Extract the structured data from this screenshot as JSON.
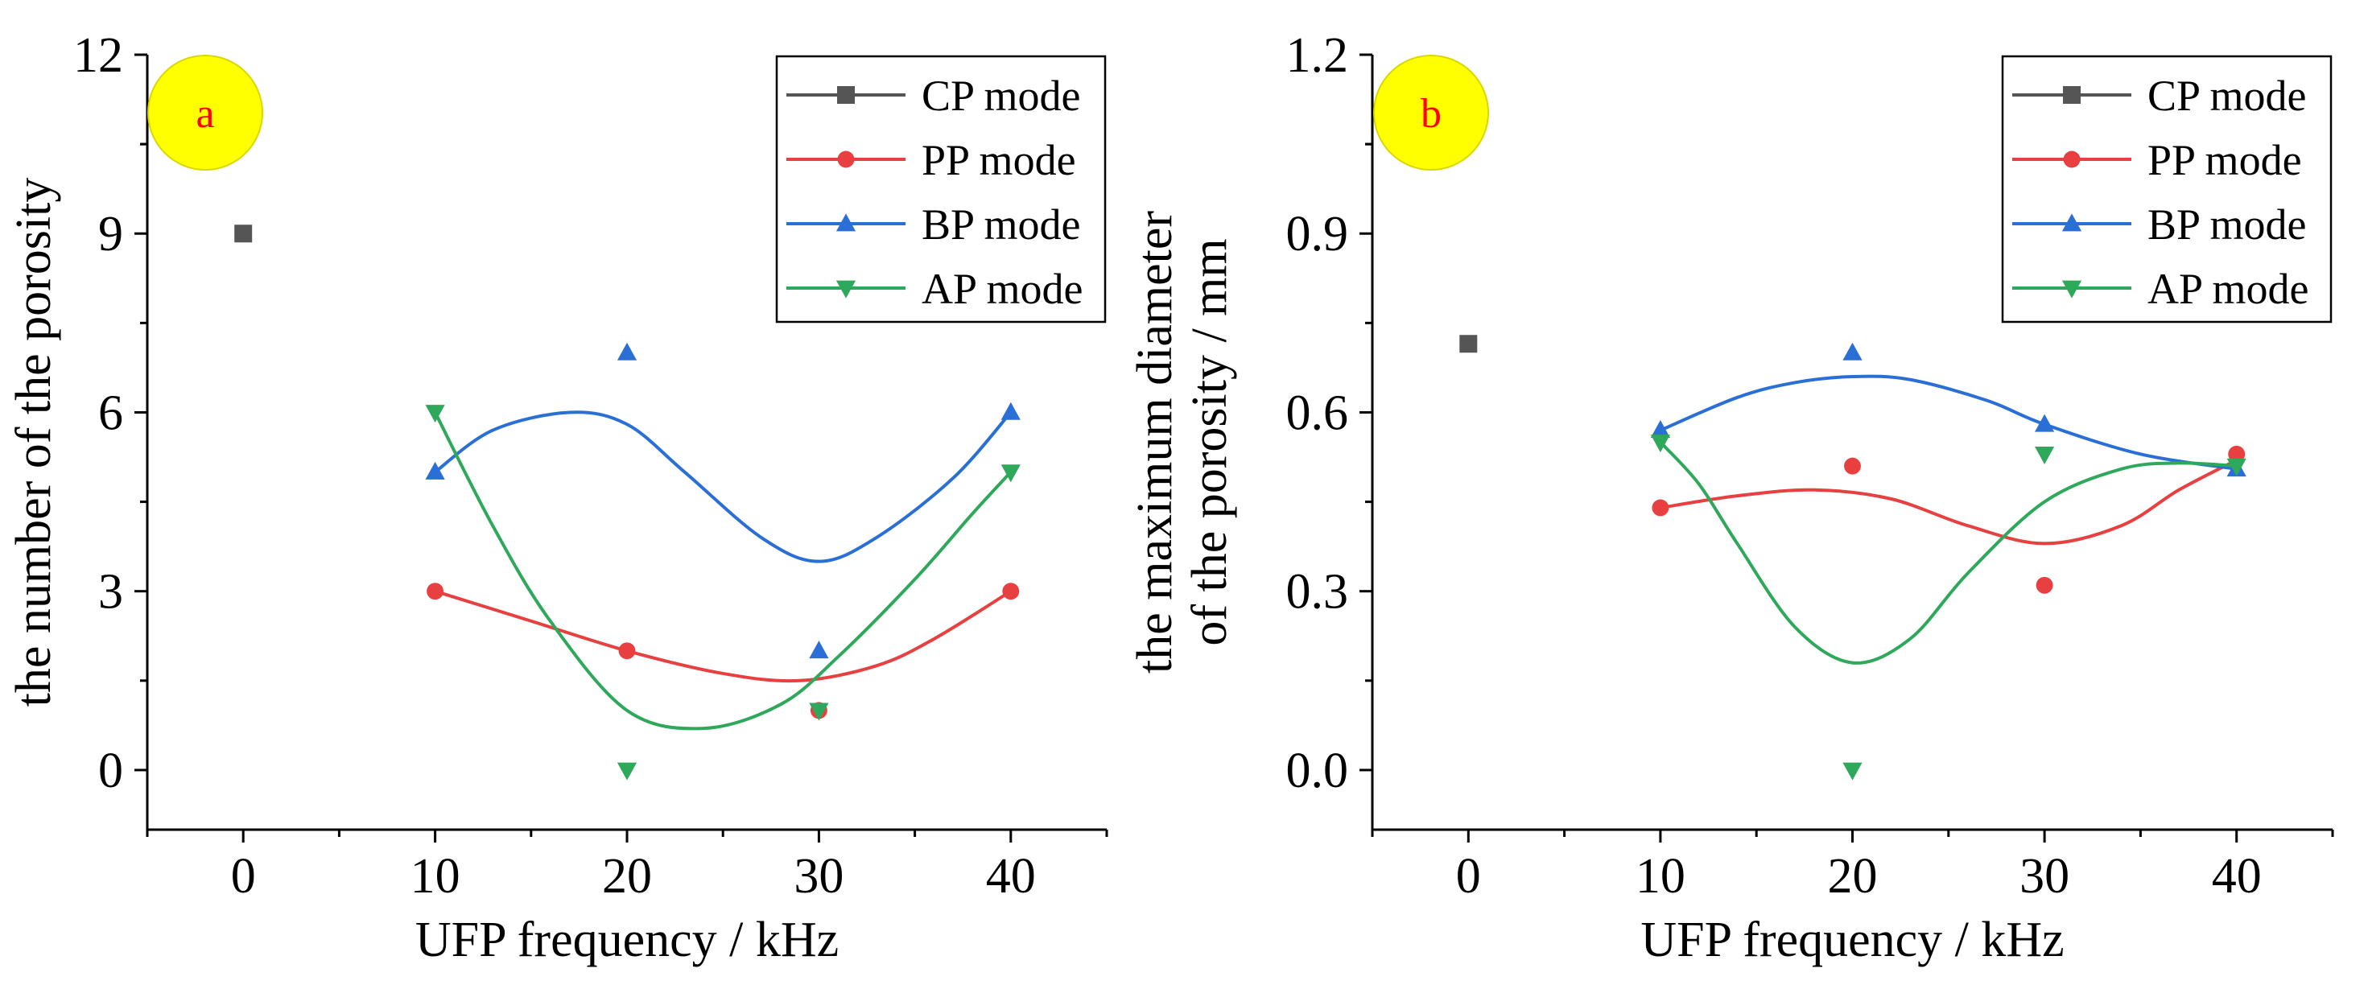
{
  "chart_data": [
    {
      "type": "scatter",
      "panel_label": "a",
      "xlabel": "UFP frequency / kHz",
      "ylabel": "the number of the porosity",
      "xlim": [
        -5,
        45
      ],
      "ylim": [
        -1,
        12
      ],
      "xticks": [
        0,
        10,
        20,
        30,
        40
      ],
      "xtick_labels": [
        "0",
        "10",
        "20",
        "30",
        "40"
      ],
      "yticks": [
        0,
        3,
        6,
        9,
        12
      ],
      "ytick_labels": [
        "0",
        "3",
        "6",
        "9",
        "12"
      ],
      "legend_position": "top-right",
      "series": [
        {
          "name": "CP mode",
          "color": "#555555",
          "marker": "square",
          "x": [
            0
          ],
          "y": [
            9
          ],
          "fit": null
        },
        {
          "name": "PP mode",
          "color": "#e84040",
          "marker": "circle",
          "x": [
            10,
            20,
            30,
            40
          ],
          "y": [
            3,
            2,
            1,
            3
          ],
          "fit": {
            "x": [
              10,
              15,
              20,
              25,
              29,
              33,
              36,
              40
            ],
            "y": [
              3.0,
              2.5,
              2.0,
              1.62,
              1.5,
              1.75,
              2.2,
              3.0
            ]
          }
        },
        {
          "name": "BP mode",
          "color": "#2a6fd6",
          "marker": "triangle-up",
          "x": [
            10,
            20,
            30,
            40
          ],
          "y": [
            5,
            7,
            2,
            6
          ],
          "fit": {
            "x": [
              10,
              13,
              17,
              20,
              23,
              27,
              30,
              33,
              37,
              40
            ],
            "y": [
              5.0,
              5.7,
              6.0,
              5.8,
              5.0,
              3.9,
              3.5,
              3.9,
              4.9,
              6.0
            ]
          }
        },
        {
          "name": "AP mode",
          "color": "#2ea85a",
          "marker": "triangle-down",
          "x": [
            10,
            20,
            30,
            40
          ],
          "y": [
            6,
            0,
            1,
            5
          ],
          "fit": {
            "x": [
              10,
              13,
              16,
              20,
              24,
              28,
              31,
              35,
              38,
              40
            ],
            "y": [
              6.0,
              4.1,
              2.5,
              1.0,
              0.7,
              1.1,
              1.9,
              3.2,
              4.3,
              5.0
            ]
          }
        }
      ]
    },
    {
      "type": "scatter",
      "panel_label": "b",
      "xlabel": "UFP frequency / kHz",
      "ylabel": "the maximum diameter\nof the porosity / mm",
      "ylabel_lines": [
        "the maximum diameter",
        "of the porosity / mm"
      ],
      "xlim": [
        -5,
        45
      ],
      "ylim": [
        -0.1,
        1.2
      ],
      "xticks": [
        0,
        10,
        20,
        30,
        40
      ],
      "xtick_labels": [
        "0",
        "10",
        "20",
        "30",
        "40"
      ],
      "yticks": [
        0.0,
        0.3,
        0.6,
        0.9,
        1.2
      ],
      "ytick_labels": [
        "0.0",
        "0.3",
        "0.6",
        "0.9",
        "1.2"
      ],
      "legend_position": "top-right",
      "series": [
        {
          "name": "CP mode",
          "color": "#555555",
          "marker": "square",
          "x": [
            0
          ],
          "y": [
            0.715
          ],
          "fit": null
        },
        {
          "name": "PP mode",
          "color": "#e84040",
          "marker": "circle",
          "x": [
            10,
            20,
            30,
            40
          ],
          "y": [
            0.44,
            0.51,
            0.31,
            0.53
          ],
          "fit": {
            "x": [
              10,
              14,
              18,
              22,
              26,
              30,
              34,
              37,
              40
            ],
            "y": [
              0.44,
              0.46,
              0.47,
              0.455,
              0.41,
              0.38,
              0.41,
              0.47,
              0.52
            ]
          }
        },
        {
          "name": "BP mode",
          "color": "#2a6fd6",
          "marker": "triangle-up",
          "x": [
            10,
            20,
            30,
            40
          ],
          "y": [
            0.57,
            0.7,
            0.58,
            0.505
          ],
          "fit": {
            "x": [
              10,
              14,
              17,
              20,
              23,
              27,
              30,
              35,
              40
            ],
            "y": [
              0.57,
              0.625,
              0.65,
              0.66,
              0.655,
              0.62,
              0.58,
              0.53,
              0.505
            ]
          }
        },
        {
          "name": "AP mode",
          "color": "#2ea85a",
          "marker": "triangle-down",
          "x": [
            10,
            20,
            30,
            40
          ],
          "y": [
            0.55,
            0.0,
            0.53,
            0.51
          ],
          "fit": {
            "x": [
              10,
              12,
              14,
              17,
              20,
              23,
              26,
              30,
              34,
              37,
              40
            ],
            "y": [
              0.55,
              0.48,
              0.38,
              0.24,
              0.18,
              0.22,
              0.33,
              0.45,
              0.505,
              0.515,
              0.51
            ]
          }
        }
      ]
    }
  ]
}
